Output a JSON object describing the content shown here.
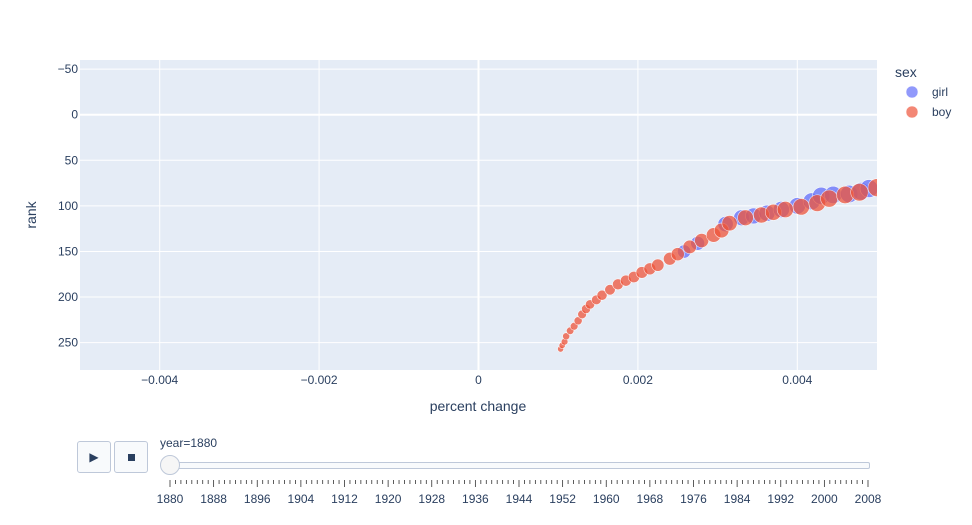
{
  "legend": {
    "title": "sex",
    "items": [
      {
        "label": "girl",
        "color": "#636efa"
      },
      {
        "label": "boy",
        "color": "#ef553b"
      }
    ]
  },
  "controls": {
    "play_icon": "play-icon",
    "stop_icon": "stop-icon",
    "current_value": "year=1880"
  },
  "slider": {
    "min": 1880,
    "max": 2008,
    "value": 1880,
    "labels": [
      "1880",
      "1888",
      "1896",
      "1904",
      "1912",
      "1920",
      "1928",
      "1936",
      "1944",
      "1952",
      "1960",
      "1968",
      "1976",
      "1984",
      "1992",
      "2000",
      "2008"
    ]
  },
  "chart_data": {
    "type": "scatter",
    "xlabel": "percent change",
    "ylabel": "rank",
    "xlim": [
      -0.005,
      0.005
    ],
    "ylim": [
      280,
      -60
    ],
    "y_reversed": true,
    "grid": true,
    "legend_position": "top-right",
    "x_ticks": [
      "−0.004",
      "−0.002",
      "0",
      "0.002",
      "0.004"
    ],
    "x_tick_values": [
      -0.004,
      -0.002,
      0,
      0.002,
      0.004
    ],
    "y_ticks": [
      "−50",
      "0",
      "50",
      "100",
      "150",
      "200",
      "250"
    ],
    "y_tick_values": [
      -50,
      0,
      50,
      100,
      150,
      200,
      250
    ],
    "series": [
      {
        "name": "girl",
        "color": "#636efa",
        "points": [
          [
            0.00258,
            150
          ],
          [
            0.00275,
            141
          ],
          [
            0.0031,
            120
          ],
          [
            0.0033,
            113
          ],
          [
            0.00345,
            111
          ],
          [
            0.00362,
            108
          ],
          [
            0.0038,
            104
          ],
          [
            0.004,
            100
          ],
          [
            0.00418,
            95
          ],
          [
            0.0043,
            89
          ],
          [
            0.00445,
            88
          ],
          [
            0.00465,
            87
          ],
          [
            0.0048,
            84
          ],
          [
            0.0049,
            81
          ]
        ]
      },
      {
        "name": "boy",
        "color": "#ef553b",
        "points": [
          [
            0.00103,
            257
          ],
          [
            0.00105,
            253
          ],
          [
            0.00108,
            249
          ],
          [
            0.0011,
            243
          ],
          [
            0.00115,
            237
          ],
          [
            0.0012,
            232
          ],
          [
            0.00125,
            226
          ],
          [
            0.0013,
            219
          ],
          [
            0.00135,
            213
          ],
          [
            0.0014,
            208
          ],
          [
            0.00148,
            203
          ],
          [
            0.00155,
            198
          ],
          [
            0.00165,
            192
          ],
          [
            0.00175,
            186
          ],
          [
            0.00185,
            182
          ],
          [
            0.00195,
            178
          ],
          [
            0.00205,
            173
          ],
          [
            0.00215,
            169
          ],
          [
            0.00225,
            165
          ],
          [
            0.0024,
            158
          ],
          [
            0.0025,
            153
          ],
          [
            0.00265,
            145
          ],
          [
            0.0028,
            138
          ],
          [
            0.00295,
            132
          ],
          [
            0.00305,
            127
          ],
          [
            0.00315,
            119
          ],
          [
            0.00335,
            113
          ],
          [
            0.00355,
            110
          ],
          [
            0.0037,
            107
          ],
          [
            0.00385,
            104
          ],
          [
            0.00405,
            101
          ],
          [
            0.00425,
            97
          ],
          [
            0.0044,
            92
          ],
          [
            0.0046,
            88
          ],
          [
            0.00478,
            85
          ],
          [
            0.005,
            80
          ]
        ]
      }
    ]
  }
}
